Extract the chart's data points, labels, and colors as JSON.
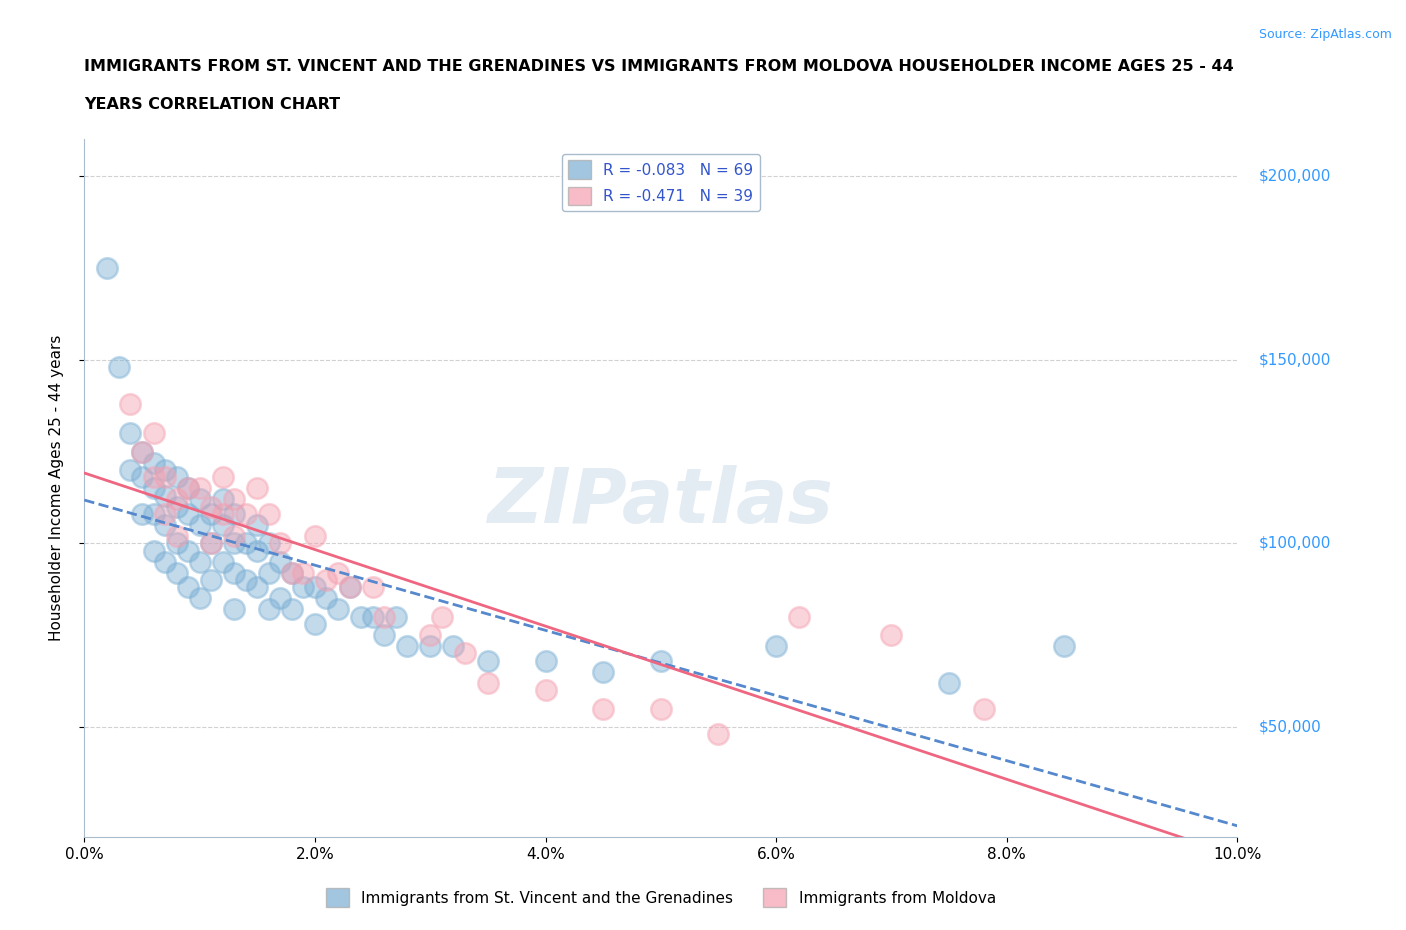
{
  "title_line1": "IMMIGRANTS FROM ST. VINCENT AND THE GRENADINES VS IMMIGRANTS FROM MOLDOVA HOUSEHOLDER INCOME AGES 25 - 44",
  "title_line2": "YEARS CORRELATION CHART",
  "ylabel": "Householder Income Ages 25 - 44 years",
  "source": "Source: ZipAtlas.com",
  "xlim": [
    0.0,
    0.1
  ],
  "ylim": [
    20000,
    210000
  ],
  "yticks": [
    50000,
    100000,
    150000,
    200000
  ],
  "ytick_labels": [
    "$50,000",
    "$100,000",
    "$150,000",
    "$200,000"
  ],
  "xticks": [
    0.0,
    0.02,
    0.04,
    0.06,
    0.08,
    0.1
  ],
  "xtick_labels": [
    "0.0%",
    "2.0%",
    "4.0%",
    "6.0%",
    "8.0%",
    "10.0%"
  ],
  "blue_color": "#7BAFD4",
  "pink_color": "#F4A0B0",
  "blue_line_color": "#5588CC",
  "pink_line_color": "#EE6680",
  "legend_label_blue": "R = -0.083   N = 69",
  "legend_label_pink": "R = -0.471   N = 39",
  "legend_label_blue_bottom": "Immigrants from St. Vincent and the Grenadines",
  "legend_label_pink_bottom": "Immigrants from Moldova",
  "watermark": "ZIPatlas",
  "blue_x": [
    0.002,
    0.003,
    0.004,
    0.004,
    0.005,
    0.005,
    0.005,
    0.006,
    0.006,
    0.006,
    0.006,
    0.007,
    0.007,
    0.007,
    0.007,
    0.008,
    0.008,
    0.008,
    0.008,
    0.009,
    0.009,
    0.009,
    0.009,
    0.01,
    0.01,
    0.01,
    0.01,
    0.011,
    0.011,
    0.011,
    0.012,
    0.012,
    0.012,
    0.013,
    0.013,
    0.013,
    0.013,
    0.014,
    0.014,
    0.015,
    0.015,
    0.015,
    0.016,
    0.016,
    0.016,
    0.017,
    0.017,
    0.018,
    0.018,
    0.019,
    0.02,
    0.02,
    0.021,
    0.022,
    0.023,
    0.024,
    0.025,
    0.026,
    0.027,
    0.028,
    0.03,
    0.032,
    0.035,
    0.04,
    0.045,
    0.05,
    0.06,
    0.075,
    0.085
  ],
  "blue_y": [
    175000,
    148000,
    130000,
    120000,
    125000,
    118000,
    108000,
    122000,
    115000,
    108000,
    98000,
    120000,
    113000,
    105000,
    95000,
    118000,
    110000,
    100000,
    92000,
    115000,
    108000,
    98000,
    88000,
    112000,
    105000,
    95000,
    85000,
    108000,
    100000,
    90000,
    112000,
    105000,
    95000,
    108000,
    100000,
    92000,
    82000,
    100000,
    90000,
    105000,
    98000,
    88000,
    100000,
    92000,
    82000,
    95000,
    85000,
    92000,
    82000,
    88000,
    88000,
    78000,
    85000,
    82000,
    88000,
    80000,
    80000,
    75000,
    80000,
    72000,
    72000,
    72000,
    68000,
    68000,
    65000,
    68000,
    72000,
    62000,
    72000
  ],
  "pink_x": [
    0.004,
    0.005,
    0.006,
    0.006,
    0.007,
    0.007,
    0.008,
    0.008,
    0.009,
    0.01,
    0.011,
    0.011,
    0.012,
    0.012,
    0.013,
    0.013,
    0.014,
    0.015,
    0.016,
    0.017,
    0.018,
    0.019,
    0.02,
    0.021,
    0.022,
    0.023,
    0.025,
    0.026,
    0.03,
    0.031,
    0.033,
    0.035,
    0.04,
    0.045,
    0.05,
    0.055,
    0.062,
    0.07,
    0.078
  ],
  "pink_y": [
    138000,
    125000,
    130000,
    118000,
    118000,
    108000,
    112000,
    102000,
    115000,
    115000,
    110000,
    100000,
    118000,
    108000,
    112000,
    102000,
    108000,
    115000,
    108000,
    100000,
    92000,
    92000,
    102000,
    90000,
    92000,
    88000,
    88000,
    80000,
    75000,
    80000,
    70000,
    62000,
    60000,
    55000,
    55000,
    48000,
    80000,
    75000,
    55000
  ]
}
